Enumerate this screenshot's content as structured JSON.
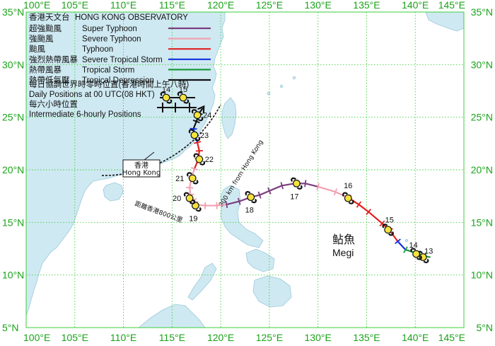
{
  "header": {
    "org_zh": "香港天文台",
    "org_en": "HONG KONG OBSERVATORY"
  },
  "legend": {
    "categories": [
      {
        "zh": "超強颱風",
        "en": "Super Typhoon",
        "color": "#7b3f7f"
      },
      {
        "zh": "強颱風",
        "en": "Severe Typhoon",
        "color": "#f2a0b0"
      },
      {
        "zh": "颱風",
        "en": "Typhoon",
        "color": "#e02020"
      },
      {
        "zh": "強烈熱帶風暴",
        "en": "Severe Tropical Storm",
        "color": "#1030e0"
      },
      {
        "zh": "熱帶風暴",
        "en": "Tropical Storm",
        "color": "#1a9a3a"
      },
      {
        "zh": "熱帶低氣壓",
        "en": "Tropical Depression",
        "color": "#111111"
      }
    ],
    "daily_zh": "每日協調世界時零時位置(香港時間上午八時)",
    "daily_en": "Daily Positions at 00 UTC(08 HKT)",
    "sample_days": [
      "14",
      "15"
    ],
    "six_hourly_zh": "每六小時位置",
    "six_hourly_en": "Intermediate 6-hourly Positions"
  },
  "axes": {
    "lon_ticks": [
      "100°E",
      "105°E",
      "110°E",
      "115°E",
      "120°E",
      "125°E",
      "130°E",
      "135°E",
      "140°E",
      "145°E"
    ],
    "lat_ticks": [
      "35°N",
      "30°N",
      "25°N",
      "20°N",
      "15°N",
      "10°N",
      "5°N"
    ],
    "lon_range": [
      100,
      145
    ],
    "lat_range": [
      5,
      35
    ],
    "grid": true,
    "grid_color": "#3ccf3c"
  },
  "hong_kong": {
    "zh": "香港",
    "en": "Hong Kong",
    "lon": 114.2,
    "lat": 22.3
  },
  "radius_circle": {
    "en": "800 km from Hong Kong",
    "zh": "距離香港800公里"
  },
  "storm": {
    "name_zh": "鲇魚",
    "name_en": "Megi"
  },
  "track": [
    {
      "lon": 141.5,
      "lat": 11.7,
      "cat": 5
    },
    {
      "lon": 141.0,
      "lat": 11.8,
      "cat": 4
    },
    {
      "lon": 140.4,
      "lat": 12.0,
      "cat": 4
    },
    {
      "lon": 139.0,
      "lat": 12.4,
      "cat": 4
    },
    {
      "lon": 138.2,
      "lat": 13.2,
      "cat": 3
    },
    {
      "lon": 137.4,
      "lat": 14.2,
      "cat": 2
    },
    {
      "lon": 136.6,
      "lat": 14.9,
      "cat": 2
    },
    {
      "lon": 135.2,
      "lat": 16.0,
      "cat": 2
    },
    {
      "lon": 134.2,
      "lat": 16.7,
      "cat": 2
    },
    {
      "lon": 133.2,
      "lat": 17.3,
      "cat": 2
    },
    {
      "lon": 131.8,
      "lat": 17.9,
      "cat": 1
    },
    {
      "lon": 130.0,
      "lat": 18.4,
      "cat": 1
    },
    {
      "lon": 128.7,
      "lat": 18.7,
      "cat": 0
    },
    {
      "lon": 127.6,
      "lat": 18.7,
      "cat": 0
    },
    {
      "lon": 126.3,
      "lat": 18.5,
      "cat": 0
    },
    {
      "lon": 125.0,
      "lat": 18.0,
      "cat": 0
    },
    {
      "lon": 124.0,
      "lat": 17.6,
      "cat": 0
    },
    {
      "lon": 123.1,
      "lat": 17.4,
      "cat": 0
    },
    {
      "lon": 121.9,
      "lat": 17.0,
      "cat": 0
    },
    {
      "lon": 120.6,
      "lat": 16.7,
      "cat": 0
    },
    {
      "lon": 119.6,
      "lat": 16.6,
      "cat": 1
    },
    {
      "lon": 118.4,
      "lat": 16.6,
      "cat": 1
    },
    {
      "lon": 117.5,
      "lat": 16.7,
      "cat": 1
    },
    {
      "lon": 117.2,
      "lat": 17.1,
      "cat": 1
    },
    {
      "lon": 116.9,
      "lat": 17.6,
      "cat": 1
    },
    {
      "lon": 116.8,
      "lat": 18.3,
      "cat": 1
    },
    {
      "lon": 117.0,
      "lat": 19.2,
      "cat": 1
    },
    {
      "lon": 117.3,
      "lat": 20.1,
      "cat": 1
    },
    {
      "lon": 117.7,
      "lat": 21.0,
      "cat": 2
    },
    {
      "lon": 117.8,
      "lat": 21.8,
      "cat": 2
    },
    {
      "lon": 117.6,
      "lat": 22.6,
      "cat": 2
    },
    {
      "lon": 117.4,
      "lat": 23.2,
      "cat": 3
    },
    {
      "lon": 117.2,
      "lat": 23.9,
      "cat": 3
    },
    {
      "lon": 117.5,
      "lat": 24.6,
      "cat": 5
    },
    {
      "lon": 117.8,
      "lat": 25.4,
      "cat": 5
    },
    {
      "lon": 118.1,
      "lat": 25.8,
      "cat": 5
    }
  ],
  "daily_points": [
    {
      "day": "13",
      "lon": 140.8,
      "lat": 11.7,
      "dx": 8,
      "dy": -5
    },
    {
      "day": "14",
      "lon": 140.1,
      "lat": 12.0,
      "dx": -4,
      "dy": -9
    },
    {
      "day": "15",
      "lon": 137.2,
      "lat": 14.3,
      "dx": 2,
      "dy": -10
    },
    {
      "day": "16",
      "lon": 133.1,
      "lat": 17.3,
      "dx": 0,
      "dy": -14
    },
    {
      "day": "17",
      "lon": 127.8,
      "lat": 18.7,
      "dx": -3,
      "dy": 22
    },
    {
      "day": "18",
      "lon": 123.1,
      "lat": 17.4,
      "dx": -2,
      "dy": 22
    },
    {
      "day": "19",
      "lon": 117.4,
      "lat": 16.6,
      "dx": -3,
      "dy": 22
    },
    {
      "day": "20",
      "lon": 116.8,
      "lat": 17.3,
      "dx": -18,
      "dy": 4
    },
    {
      "day": "21",
      "lon": 117.1,
      "lat": 19.2,
      "dx": -18,
      "dy": 4
    },
    {
      "day": "22",
      "lon": 117.8,
      "lat": 21.0,
      "dx": 14,
      "dy": 4
    },
    {
      "day": "23",
      "lon": 117.3,
      "lat": 23.3,
      "dx": 14,
      "dy": 4
    },
    {
      "day": "24",
      "lon": 117.6,
      "lat": 25.2,
      "dx": 14,
      "dy": 4
    }
  ],
  "colors": {
    "land": "#cfe9f2",
    "land_edge": "#9cc9da",
    "sea": "#ffffff",
    "storm_symbol": "#f5e33c"
  }
}
